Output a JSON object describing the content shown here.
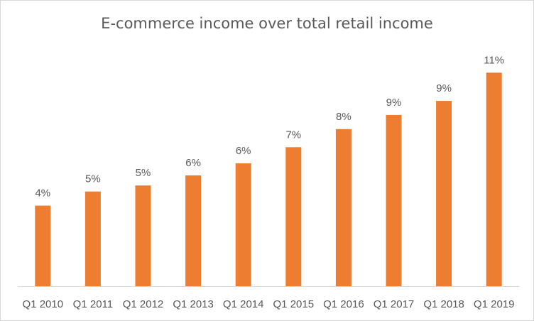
{
  "chart_data": {
    "type": "bar",
    "title": "E-commerce income over total retail income",
    "xlabel": "",
    "ylabel": "",
    "categories": [
      "Q1 2010",
      "Q1 2011",
      "Q1 2012",
      "Q1 2013",
      "Q1 2014",
      "Q1 2015",
      "Q1 2016",
      "Q1 2017",
      "Q1 2018",
      "Q1 2019"
    ],
    "values": [
      4.0,
      4.7,
      5.0,
      5.5,
      6.1,
      6.9,
      7.8,
      8.5,
      9.2,
      10.6
    ],
    "data_labels": [
      "4%",
      "5%",
      "5%",
      "6%",
      "6%",
      "7%",
      "8%",
      "9%",
      "9%",
      "11%"
    ],
    "ylim": [
      0,
      11
    ],
    "grid": false,
    "legend": "none",
    "bar_color": "#ed7d31",
    "label_color": "#595959",
    "axis_color": "#d9d9d9"
  }
}
